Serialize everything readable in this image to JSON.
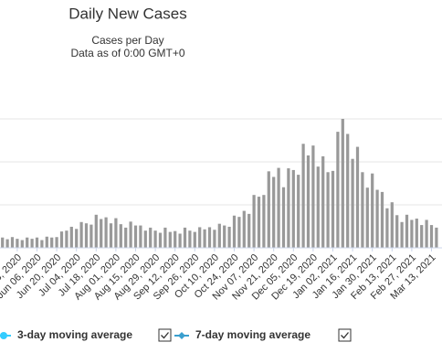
{
  "chart_data": {
    "type": "bar",
    "title": "Daily New Cases",
    "subtitle": "Cases per Day",
    "note": "Data as of 0:00 GMT+0",
    "color": "#999999",
    "categories": [
      null,
      null,
      null,
      "May 23, 2020",
      null,
      null,
      null,
      "Jun 06, 2020",
      null,
      null,
      null,
      "Jun 20, 2020",
      null,
      null,
      null,
      "Jul 04, 2020",
      null,
      null,
      null,
      "Jul 18, 2020",
      null,
      null,
      null,
      "Aug 01, 2020",
      null,
      null,
      null,
      "Aug 15, 2020",
      null,
      null,
      null,
      "Aug 29, 2020",
      null,
      null,
      null,
      "Sep 12, 2020",
      null,
      null,
      null,
      "Sep 26, 2020",
      null,
      null,
      null,
      "Oct 10, 2020",
      null,
      null,
      null,
      "Oct 24, 2020",
      null,
      null,
      null,
      "Nov 07, 2020",
      null,
      null,
      null,
      "Nov 21, 2020",
      null,
      null,
      null,
      "Dec 05, 2020",
      null,
      null,
      null,
      "Dec 19, 2020",
      null,
      null,
      null,
      "Jan 02, 2021",
      null,
      null,
      null,
      "Jan 16, 2021",
      null,
      null,
      null,
      "Jan 30, 2021",
      null,
      null,
      null,
      "Feb 13, 2021",
      null,
      null,
      null,
      "Feb 27, 2021",
      null,
      null,
      null,
      "Mar 13, 2021",
      null
    ],
    "values": [
      24000,
      20000,
      25000,
      21000,
      18000,
      24000,
      21000,
      24000,
      18000,
      26000,
      24000,
      25000,
      38000,
      40000,
      49000,
      44000,
      60000,
      57000,
      54000,
      77000,
      67000,
      71000,
      57000,
      69000,
      55000,
      47000,
      61000,
      52000,
      52000,
      40000,
      47000,
      40000,
      35000,
      47000,
      37000,
      39000,
      33000,
      47000,
      40000,
      37000,
      48000,
      43000,
      48000,
      42000,
      56000,
      52000,
      49000,
      75000,
      72000,
      86000,
      79000,
      123000,
      119000,
      123000,
      178000,
      165000,
      186000,
      141000,
      185000,
      181000,
      170000,
      242000,
      215000,
      238000,
      189000,
      213000,
      176000,
      179000,
      270000,
      300000,
      265000,
      207000,
      235000,
      176000,
      140000,
      173000,
      135000,
      130000,
      92000,
      106000,
      76000,
      60000,
      77000,
      65000,
      68000,
      53000,
      65000,
      53000,
      47000
    ],
    "series": [
      {
        "name": "3-day moving average",
        "color": "#33ccff",
        "values": [
          23000,
          22000,
          24000,
          22000,
          20000,
          23000,
          21000,
          23000,
          20000,
          25000,
          25000,
          27000,
          36000,
          40000,
          47000,
          47000,
          57000,
          59000,
          59000,
          72000,
          67000,
          69000,
          61000,
          66000,
          57000,
          51000,
          57000,
          52000,
          50000,
          43000,
          45000,
          41000,
          38000,
          44000,
          37000,
          38000,
          36000,
          45000,
          41000,
          40000,
          45000,
          43000,
          46000,
          45000,
          53000,
          54000,
          54000,
          70000,
          72000,
          83000,
          85000,
          117000,
          122000,
          134000,
          167000,
          165000,
          179000,
          151000,
          175000,
          186000,
          185000,
          226000,
          215000,
          229000,
          202000,
          202000,
          181000,
          195000,
          253000,
          275000,
          255000,
          221000,
          223000,
          181000,
          153000,
          162000,
          135000,
          125000,
          99000,
          101000,
          78000,
          65000,
          72000,
          65000,
          66000,
          57000,
          62000,
          55000,
          51000
        ]
      },
      {
        "name": "7-day moving average",
        "color": "#3a9fcf",
        "values": [
          22000,
          23000,
          22000,
          22000,
          21000,
          21000,
          21000,
          22000,
          21000,
          23000,
          25000,
          29000,
          33000,
          40000,
          45000,
          50000,
          54000,
          60000,
          63000,
          67000,
          67000,
          66000,
          65000,
          62000,
          58000,
          55000,
          53000,
          52000,
          48000,
          45000,
          42000,
          42000,
          41000,
          41000,
          37000,
          36000,
          38000,
          42000,
          42000,
          43000,
          42000,
          43000,
          44000,
          48000,
          50000,
          55000,
          58000,
          65000,
          72000,
          80000,
          90000,
          110000,
          125000,
          145000,
          155000,
          165000,
          172000,
          160000,
          165000,
          190000,
          200000,
          210000,
          215000,
          220000,
          215000,
          190000,
          185000,
          210000,
          235000,
          250000,
          245000,
          235000,
          210000,
          185000,
          165000,
          150000,
          135000,
          120000,
          105000,
          95000,
          80000,
          70000,
          67000,
          65000,
          63000,
          60000,
          58000,
          56000,
          55000
        ]
      }
    ],
    "ylim": [
      0,
      400000
    ],
    "yticks": [
      100000,
      200000,
      300000
    ],
    "grid": true
  }
}
